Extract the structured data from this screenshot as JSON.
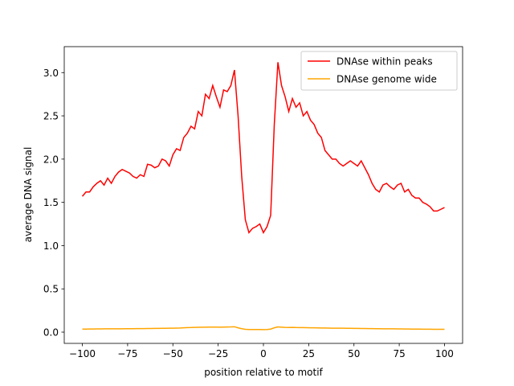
{
  "chart_data": {
    "type": "line",
    "xlabel": "position relative to motif",
    "ylabel": "average DNA signal",
    "x": [
      -100,
      -98,
      -96,
      -94,
      -92,
      -90,
      -88,
      -86,
      -84,
      -82,
      -80,
      -78,
      -76,
      -74,
      -72,
      -70,
      -68,
      -66,
      -64,
      -62,
      -60,
      -58,
      -56,
      -54,
      -52,
      -50,
      -48,
      -46,
      -44,
      -42,
      -40,
      -38,
      -36,
      -34,
      -32,
      -30,
      -28,
      -26,
      -24,
      -22,
      -20,
      -18,
      -16,
      -14,
      -12,
      -10,
      -8,
      -6,
      -4,
      -2,
      0,
      2,
      4,
      6,
      8,
      10,
      12,
      14,
      16,
      18,
      20,
      22,
      24,
      26,
      28,
      30,
      32,
      34,
      36,
      38,
      40,
      42,
      44,
      46,
      48,
      50,
      52,
      54,
      56,
      58,
      60,
      62,
      64,
      66,
      68,
      70,
      72,
      74,
      76,
      78,
      80,
      82,
      84,
      86,
      88,
      90,
      92,
      94,
      96,
      98,
      100
    ],
    "series": [
      {
        "name": "DNAse within peaks",
        "color": "#ff0000",
        "values": [
          1.57,
          1.62,
          1.62,
          1.68,
          1.72,
          1.75,
          1.7,
          1.78,
          1.72,
          1.8,
          1.85,
          1.88,
          1.86,
          1.84,
          1.8,
          1.78,
          1.82,
          1.8,
          1.94,
          1.93,
          1.9,
          1.92,
          2.0,
          1.98,
          1.92,
          2.05,
          2.12,
          2.1,
          2.25,
          2.3,
          2.38,
          2.35,
          2.55,
          2.5,
          2.75,
          2.7,
          2.85,
          2.72,
          2.6,
          2.8,
          2.78,
          2.85,
          3.03,
          2.5,
          1.8,
          1.3,
          1.15,
          1.2,
          1.22,
          1.25,
          1.15,
          1.22,
          1.35,
          2.4,
          3.12,
          2.85,
          2.72,
          2.55,
          2.7,
          2.6,
          2.65,
          2.5,
          2.55,
          2.45,
          2.4,
          2.3,
          2.25,
          2.1,
          2.05,
          2.0,
          2.0,
          1.95,
          1.92,
          1.95,
          1.98,
          1.95,
          1.92,
          1.98,
          1.9,
          1.82,
          1.72,
          1.65,
          1.62,
          1.7,
          1.72,
          1.68,
          1.65,
          1.7,
          1.72,
          1.62,
          1.65,
          1.58,
          1.55,
          1.55,
          1.5,
          1.48,
          1.45,
          1.4,
          1.4,
          1.42,
          1.44
        ]
      },
      {
        "name": "DNAse genome wide",
        "color": "#ffa500",
        "values": [
          0.035,
          0.035,
          0.036,
          0.036,
          0.037,
          0.037,
          0.038,
          0.038,
          0.038,
          0.039,
          0.039,
          0.039,
          0.04,
          0.04,
          0.04,
          0.041,
          0.041,
          0.041,
          0.042,
          0.042,
          0.043,
          0.043,
          0.044,
          0.044,
          0.045,
          0.046,
          0.047,
          0.048,
          0.05,
          0.052,
          0.053,
          0.055,
          0.056,
          0.057,
          0.057,
          0.058,
          0.058,
          0.058,
          0.057,
          0.058,
          0.059,
          0.06,
          0.062,
          0.05,
          0.04,
          0.033,
          0.03,
          0.03,
          0.03,
          0.03,
          0.029,
          0.03,
          0.035,
          0.05,
          0.06,
          0.057,
          0.055,
          0.054,
          0.055,
          0.053,
          0.052,
          0.052,
          0.051,
          0.05,
          0.05,
          0.049,
          0.048,
          0.048,
          0.047,
          0.046,
          0.046,
          0.045,
          0.045,
          0.044,
          0.044,
          0.043,
          0.043,
          0.042,
          0.042,
          0.041,
          0.041,
          0.04,
          0.04,
          0.039,
          0.039,
          0.038,
          0.038,
          0.037,
          0.037,
          0.036,
          0.036,
          0.035,
          0.035,
          0.035,
          0.034,
          0.034,
          0.034,
          0.033,
          0.033,
          0.033,
          0.033
        ]
      }
    ],
    "xlim": [
      -110,
      110
    ],
    "ylim": [
      -0.13,
      3.3
    ],
    "xticks": [
      {
        "value": -100,
        "label": "−100"
      },
      {
        "value": -75,
        "label": "−75"
      },
      {
        "value": -50,
        "label": "−50"
      },
      {
        "value": -25,
        "label": "−25"
      },
      0,
      25,
      50,
      75,
      100
    ],
    "yticks": [
      {
        "value": 0,
        "label": "0.0"
      },
      0.5,
      {
        "value": 1,
        "label": "1.0"
      },
      1.5,
      {
        "value": 2,
        "label": "2.0"
      },
      2.5,
      {
        "value": 3,
        "label": "3.0"
      }
    ],
    "legend": "upper right"
  }
}
